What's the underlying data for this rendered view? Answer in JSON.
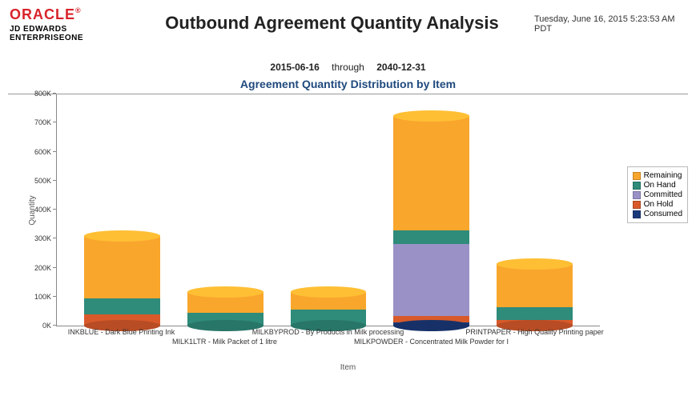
{
  "header": {
    "logo_text": "ORACLE",
    "logo_reg": "®",
    "logo_line1": "JD EDWARDS",
    "logo_line2": "ENTERPRISEONE",
    "title": "Outbound Agreement Quantity Analysis",
    "timestamp": "Tuesday, June 16, 2015 5:23:53 AM PDT"
  },
  "date_range": {
    "from": "2015-06-16",
    "through_label": "through",
    "to": "2040-12-31"
  },
  "chart": {
    "title": "Agreement Quantity Distribution by Item",
    "type": "stacked-bar",
    "y_axis": {
      "label": "Quantity",
      "min": 0,
      "max": 800000,
      "step": 100000,
      "tick_suffix": "K"
    },
    "x_axis": {
      "label": "Item"
    },
    "colors": {
      "Remaining": "#f9a62d",
      "On Hand": "#2f8b7a",
      "Committed": "#9a91c6",
      "On Hold": "#d85a2a",
      "Consumed": "#1b3a7a",
      "grid": "#888888",
      "background": "#ffffff"
    },
    "legend_order": [
      "Remaining",
      "On Hand",
      "Committed",
      "On Hold",
      "Consumed"
    ],
    "stack_order": [
      "Consumed",
      "On Hold",
      "Committed",
      "On Hand",
      "Remaining"
    ],
    "bar_width_pct": 14,
    "categories": [
      {
        "label": "INKBLUE - Dark Blue Printing Ink",
        "values": {
          "Consumed": 0,
          "On Hold": 40000,
          "Committed": 0,
          "On Hand": 55000,
          "Remaining": 215000
        },
        "label_row": 0
      },
      {
        "label": "MILK1LTR - Milk Packet of 1 litre",
        "values": {
          "Consumed": 0,
          "On Hold": 0,
          "Committed": 0,
          "On Hand": 45000,
          "Remaining": 70000
        },
        "label_row": 1
      },
      {
        "label": "MILKBYPROD - By Products in Milk processing",
        "values": {
          "Consumed": 0,
          "On Hold": 0,
          "Committed": 0,
          "On Hand": 55000,
          "Remaining": 60000
        },
        "label_row": 0
      },
      {
        "label": "MILKPOWDER - Concentrated Milk Powder for I",
        "values": {
          "Consumed": 12000,
          "On Hold": 20000,
          "Committed": 250000,
          "On Hand": 45000,
          "Remaining": 395000
        },
        "label_row": 1
      },
      {
        "label": "PRINTPAPER - High Quality Printing paper",
        "values": {
          "Consumed": 0,
          "On Hold": 18000,
          "Committed": 0,
          "On Hand": 45000,
          "Remaining": 150000
        },
        "label_row": 0
      }
    ]
  }
}
